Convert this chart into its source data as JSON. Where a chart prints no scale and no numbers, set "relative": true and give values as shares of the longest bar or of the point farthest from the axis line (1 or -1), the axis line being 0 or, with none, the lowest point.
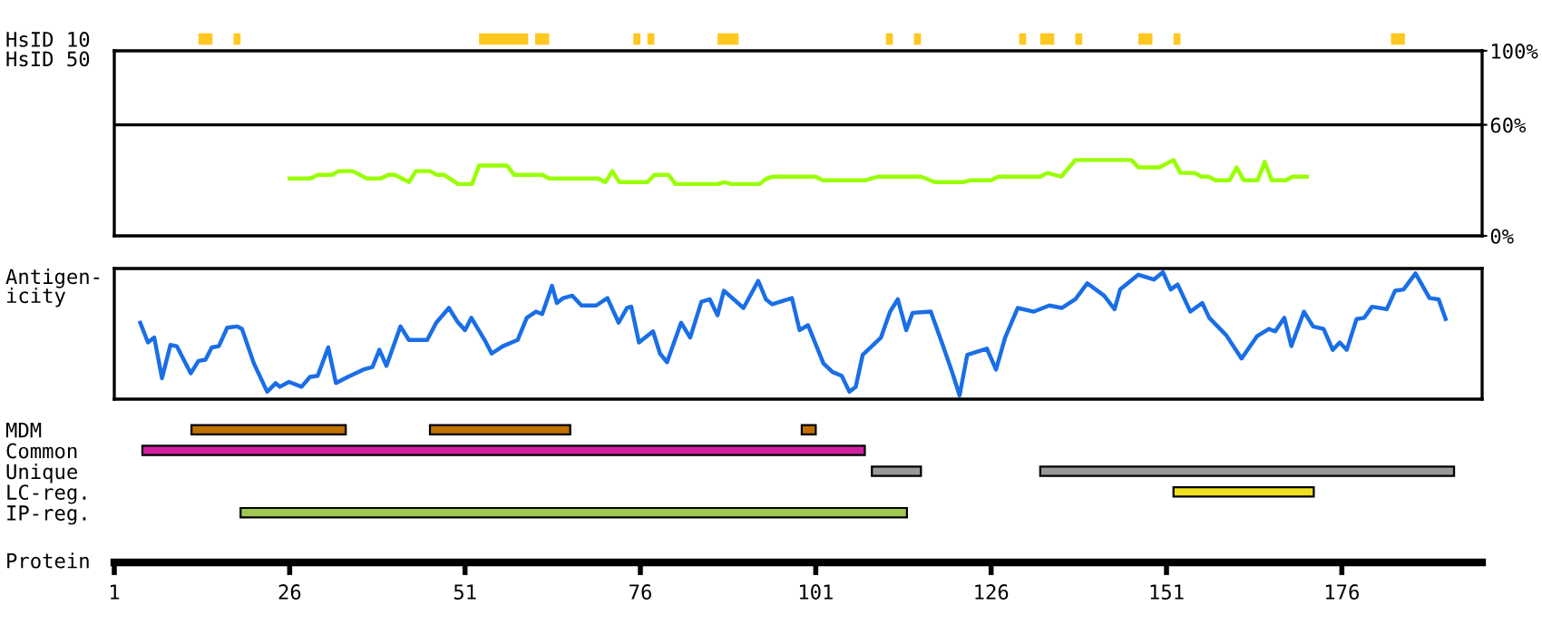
{
  "chart_data": [
    {
      "type": "bar",
      "orientation": "horizontal",
      "categories": [
        "HsID 10"
      ],
      "xlim": [
        1,
        196
      ],
      "tick_labels": "y",
      "series": [
        {
          "color": "#ffc820",
          "values": [
            2
          ],
          "base": [
            13
          ]
        },
        {
          "color": "#ffc820",
          "values": [
            1
          ],
          "base": [
            18
          ]
        },
        {
          "color": "#ffc820",
          "values": [
            7
          ],
          "base": [
            53
          ]
        },
        {
          "color": "#ffc820",
          "values": [
            2
          ],
          "base": [
            61
          ]
        },
        {
          "color": "#ffc820",
          "values": [
            1
          ],
          "base": [
            75
          ]
        },
        {
          "color": "#ffc820",
          "values": [
            1
          ],
          "base": [
            77
          ]
        },
        {
          "color": "#ffc820",
          "values": [
            3
          ],
          "base": [
            87
          ]
        },
        {
          "color": "#ffc820",
          "values": [
            1
          ],
          "base": [
            111
          ]
        },
        {
          "color": "#ffc820",
          "values": [
            1
          ],
          "base": [
            115
          ]
        },
        {
          "color": "#ffc820",
          "values": [
            1
          ],
          "base": [
            130
          ]
        },
        {
          "color": "#ffc820",
          "values": [
            2
          ],
          "base": [
            133
          ]
        },
        {
          "color": "#ffc820",
          "values": [
            1
          ],
          "base": [
            138
          ]
        },
        {
          "color": "#ffc820",
          "values": [
            2
          ],
          "base": [
            147
          ]
        },
        {
          "color": "#ffc820",
          "values": [
            1
          ],
          "base": [
            152
          ]
        },
        {
          "color": "#ffc820",
          "values": [
            2
          ],
          "base": [
            183
          ]
        }
      ]
    },
    {
      "type": "line",
      "ylabel": "HsID 50",
      "xlim": [
        1,
        196
      ],
      "ylim": [
        0,
        100
      ],
      "tick_labels": "y",
      "yticks": [
        {
          "value": 0,
          "label": "0%"
        },
        {
          "value": 60,
          "label": "60%"
        },
        {
          "value": 100,
          "label": "100%"
        }
      ],
      "ref_lines": [
        {
          "axis": "y",
          "value": 60,
          "color": "#000000"
        }
      ],
      "series": [
        {
          "color": "#99ff00",
          "x": [
            26,
            29,
            30,
            32,
            33,
            35,
            37,
            39,
            40,
            41,
            43,
            44,
            46,
            47,
            48,
            50,
            52,
            53,
            57,
            58,
            62,
            63,
            70,
            71,
            72,
            73,
            77,
            78,
            80,
            81,
            87,
            88,
            89,
            93,
            94,
            95,
            101,
            102,
            108,
            110,
            116,
            118,
            122,
            123,
            126,
            127,
            133,
            134,
            136,
            138,
            146,
            147,
            150,
            152,
            153,
            155,
            156,
            157,
            158,
            160,
            161,
            162,
            164,
            165,
            166,
            168,
            169,
            171
          ],
          "values": [
            31,
            31,
            33,
            33,
            35,
            35,
            31,
            31,
            33,
            33,
            29,
            35,
            35,
            33,
            33,
            28,
            28,
            38,
            38,
            33,
            33,
            31,
            31,
            29,
            35,
            29,
            29,
            33,
            33,
            28,
            28,
            29,
            28,
            28,
            31,
            32,
            32,
            30,
            30,
            32,
            32,
            29,
            29,
            30,
            30,
            32,
            32,
            34,
            32,
            41,
            41,
            37,
            37,
            41,
            34,
            34,
            32,
            32,
            30,
            30,
            37,
            30,
            30,
            40,
            30,
            30,
            32,
            32
          ]
        }
      ]
    },
    {
      "type": "line",
      "ylabel": "Antigen-\nicity",
      "xlim": [
        1,
        196
      ],
      "relative": true,
      "tick_labels": false,
      "series": [
        {
          "color": "#1a6ee6",
          "x": [
            4.7,
            5.8,
            6.7,
            7.8,
            9.0,
            9.9,
            11.9,
            13.0,
            14.0,
            14.9,
            15.9,
            17.1,
            18.5,
            19.2,
            20.9,
            22.8,
            24.0,
            24.6,
            25.9,
            27.7,
            28.9,
            30.0,
            31.5,
            32.6,
            34.3,
            36.5,
            37.8,
            38.8,
            39.8,
            41.8,
            43.0,
            45.6,
            46.9,
            48.7,
            49.9,
            51.0,
            51.9,
            53.8,
            54.8,
            56.4,
            58.5,
            59.8,
            61.1,
            62.0,
            62.8,
            63.4,
            64.1,
            65.0,
            66.3,
            67.6,
            69.7,
            71.3,
            72.9,
            74.1,
            74.7,
            75.8,
            77.8,
            78.8,
            79.8,
            81.8,
            83.1,
            84.7,
            85.9,
            87.0,
            87.9,
            90.7,
            92.8,
            93.9,
            94.8,
            97.6,
            98.7,
            99.9,
            102.1,
            103.4,
            104.7,
            105.8,
            106.7,
            107.7,
            110.3,
            111.6,
            112.7,
            113.9,
            114.8,
            117.4,
            119.1,
            120.5,
            121.5,
            122.6,
            125.4,
            126.7,
            128.0,
            129.8,
            132.1,
            134.3,
            136.1,
            138.0,
            139.7,
            142.1,
            143.6,
            144.4,
            147.0,
            149.2,
            150.5,
            151.6,
            152.6,
            154.4,
            156.1,
            157.1,
            159.5,
            161.7,
            163.9,
            165.6,
            166.5,
            167.8,
            168.8,
            170.6,
            171.9,
            173.4,
            174.7,
            175.7,
            176.7,
            178.1,
            179.2,
            180.3,
            182.4,
            183.6,
            184.8,
            186.5,
            188.5,
            189.8,
            190.8
          ],
          "values": [
            0.59,
            0.43,
            0.47,
            0.14,
            0.41,
            0.4,
            0.18,
            0.28,
            0.29,
            0.39,
            0.4,
            0.55,
            0.56,
            0.54,
            0.26,
            0.03,
            0.1,
            0.07,
            0.11,
            0.07,
            0.15,
            0.16,
            0.39,
            0.1,
            0.15,
            0.21,
            0.23,
            0.37,
            0.24,
            0.56,
            0.45,
            0.45,
            0.59,
            0.71,
            0.6,
            0.53,
            0.63,
            0.45,
            0.34,
            0.4,
            0.45,
            0.63,
            0.68,
            0.66,
            0.79,
            0.89,
            0.75,
            0.79,
            0.81,
            0.73,
            0.73,
            0.79,
            0.59,
            0.71,
            0.72,
            0.43,
            0.52,
            0.34,
            0.27,
            0.59,
            0.47,
            0.76,
            0.78,
            0.65,
            0.85,
            0.71,
            0.93,
            0.78,
            0.74,
            0.79,
            0.53,
            0.57,
            0.26,
            0.19,
            0.16,
            0.03,
            0.07,
            0.33,
            0.47,
            0.68,
            0.78,
            0.53,
            0.67,
            0.68,
            0.41,
            0.18,
            0,
            0.33,
            0.38,
            0.21,
            0.47,
            0.71,
            0.68,
            0.73,
            0.71,
            0.78,
            0.91,
            0.81,
            0.7,
            0.86,
            0.98,
            0.94,
            1.0,
            0.86,
            0.9,
            0.68,
            0.75,
            0.63,
            0.49,
            0.3,
            0.48,
            0.54,
            0.52,
            0.63,
            0.4,
            0.68,
            0.56,
            0.54,
            0.37,
            0.43,
            0.37,
            0.62,
            0.63,
            0.72,
            0.7,
            0.85,
            0.86,
            0.99,
            0.79,
            0.78,
            0.62
          ]
        }
      ]
    },
    {
      "type": "bar",
      "orientation": "horizontal",
      "categories": [
        "MDM",
        "Common",
        "Unique",
        "LC-reg.",
        "IP-reg."
      ],
      "xlabel": "Protein",
      "xlim": [
        1,
        196
      ],
      "xticks": [
        1,
        26,
        51,
        76,
        101,
        126,
        151,
        176
      ],
      "series": [
        {
          "colors": [
            "#c07000",
            "#d020a0",
            "#999999",
            "#f0e020",
            "#a0c850"
          ],
          "values": [
            22,
            103,
            7,
            20,
            95
          ],
          "base": [
            12,
            5,
            109,
            152,
            19
          ]
        },
        {
          "colors": [
            "#c07000",
            null,
            "#999999",
            null,
            null
          ],
          "values": [
            20,
            null,
            59,
            null,
            null
          ],
          "base": [
            46,
            null,
            133,
            null,
            null
          ]
        },
        {
          "colors": [
            "#c07000",
            null,
            null,
            null,
            null
          ],
          "values": [
            2,
            null,
            null,
            null,
            null
          ],
          "base": [
            99,
            null,
            null,
            null,
            null
          ]
        }
      ]
    }
  ]
}
